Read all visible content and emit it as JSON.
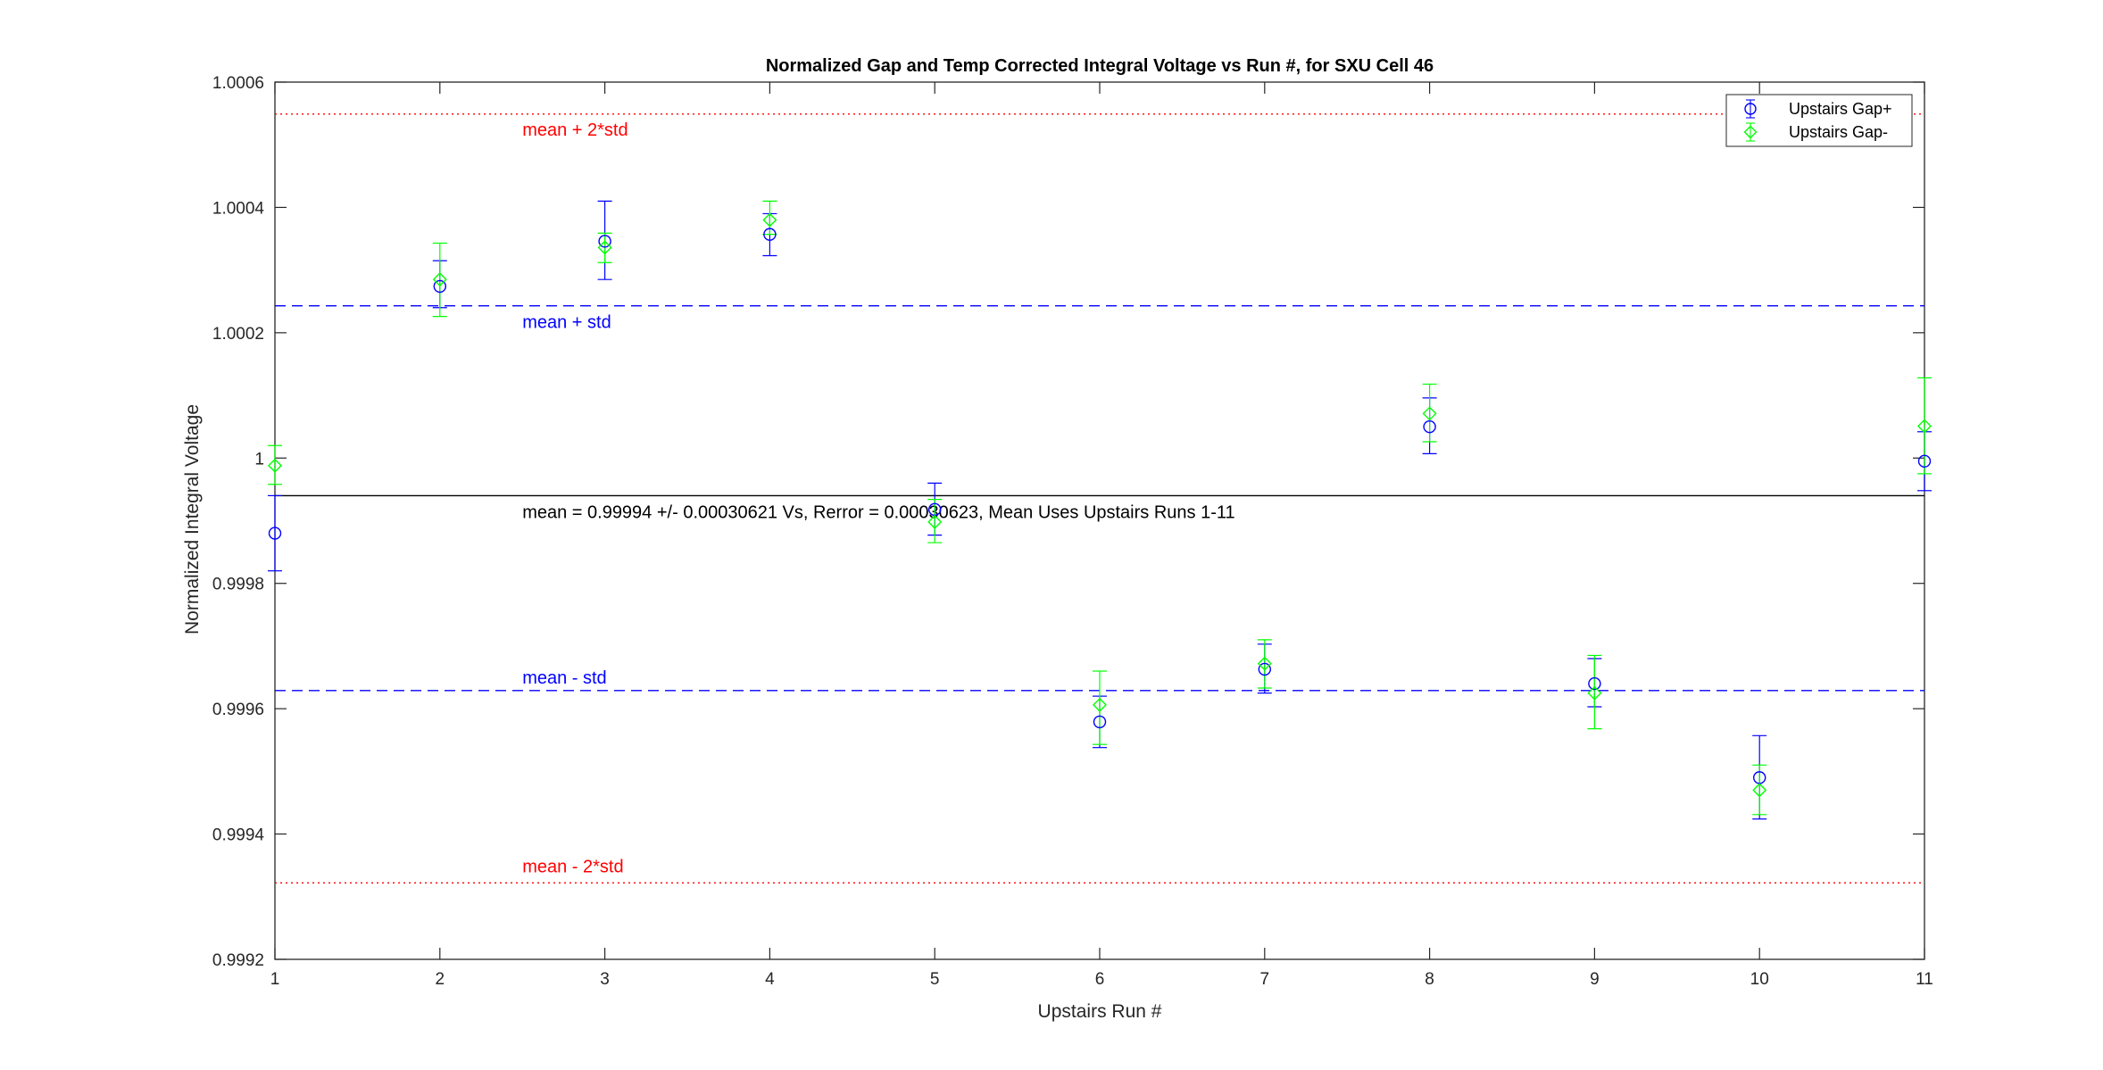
{
  "chart_data": {
    "type": "scatter",
    "title": "Normalized Gap and Temp Corrected Integral Voltage vs Run #, for SXU Cell 46",
    "xlabel": "Upstairs Run #",
    "ylabel": "Normalized Integral Voltage",
    "xlim": [
      1,
      11
    ],
    "ylim": [
      0.9992,
      1.0006
    ],
    "x_ticks": [
      1,
      2,
      3,
      4,
      5,
      6,
      7,
      8,
      9,
      10,
      11
    ],
    "x_tick_labels": [
      "1",
      "2",
      "3",
      "4",
      "5",
      "6",
      "7",
      "8",
      "9",
      "10",
      "11"
    ],
    "y_ticks": [
      0.9992,
      0.9994,
      0.9996,
      0.9998,
      1.0,
      1.0002,
      1.0004,
      1.0006
    ],
    "y_tick_labels": [
      "0.9992",
      "0.9994",
      "0.9996",
      "0.9998",
      "1",
      "1.0002",
      "1.0004",
      "1.0006"
    ],
    "grid": false,
    "legend_position": "top-right",
    "series": [
      {
        "name": "Upstairs Gap+",
        "marker": "circle",
        "color": "#0000ff",
        "x": [
          1,
          2,
          3,
          4,
          5,
          6,
          7,
          8,
          9,
          10,
          11
        ],
        "y": [
          0.99988,
          1.000274,
          1.000346,
          1.000357,
          0.999918,
          0.999579,
          0.999663,
          1.00005,
          0.99964,
          0.99949,
          0.999995
        ],
        "err_low": [
          0.99982,
          1.00024,
          1.000285,
          1.000323,
          0.999877,
          0.999538,
          0.999625,
          1.000007,
          0.999603,
          0.999424,
          0.999948
        ],
        "err_high": [
          0.99994,
          1.000315,
          1.00041,
          1.00039,
          0.99996,
          0.99962,
          0.999703,
          1.000096,
          0.99968,
          0.999557,
          1.000042
        ]
      },
      {
        "name": "Upstairs Gap-",
        "marker": "diamond",
        "color": "#00ff00",
        "x": [
          1,
          2,
          3,
          4,
          5,
          6,
          7,
          8,
          9,
          10,
          11
        ],
        "y": [
          0.999988,
          1.000285,
          1.000336,
          1.00038,
          0.999898,
          0.999606,
          0.999672,
          1.000071,
          0.999625,
          0.99947,
          1.000051
        ],
        "err_low": [
          0.999958,
          1.000226,
          1.000312,
          1.000357,
          0.999865,
          0.999543,
          0.999633,
          1.000026,
          0.999568,
          0.999431,
          0.999975
        ],
        "err_high": [
          1.00002,
          1.000343,
          1.000359,
          1.00041,
          0.999934,
          0.99966,
          0.99971,
          1.000118,
          0.999685,
          0.99951,
          1.000128
        ]
      }
    ],
    "reference_lines": [
      {
        "y": 1.000549,
        "style": "dotted",
        "color": "#ff0000",
        "label": "mean + 2*std"
      },
      {
        "y": 1.000243,
        "style": "dashed",
        "color": "#0000ff",
        "label": "mean + std"
      },
      {
        "y": 0.99994,
        "style": "solid",
        "color": "#000000",
        "label": "mean = 0.99994 +/- 0.00030621 Vs, Rerror = 0.00030623, Mean Uses Upstairs Runs 1-11"
      },
      {
        "y": 0.999629,
        "style": "dashed",
        "color": "#0000ff",
        "label": "mean - std"
      },
      {
        "y": 0.999322,
        "style": "dotted",
        "color": "#ff0000",
        "label": "mean - 2*std"
      }
    ]
  }
}
